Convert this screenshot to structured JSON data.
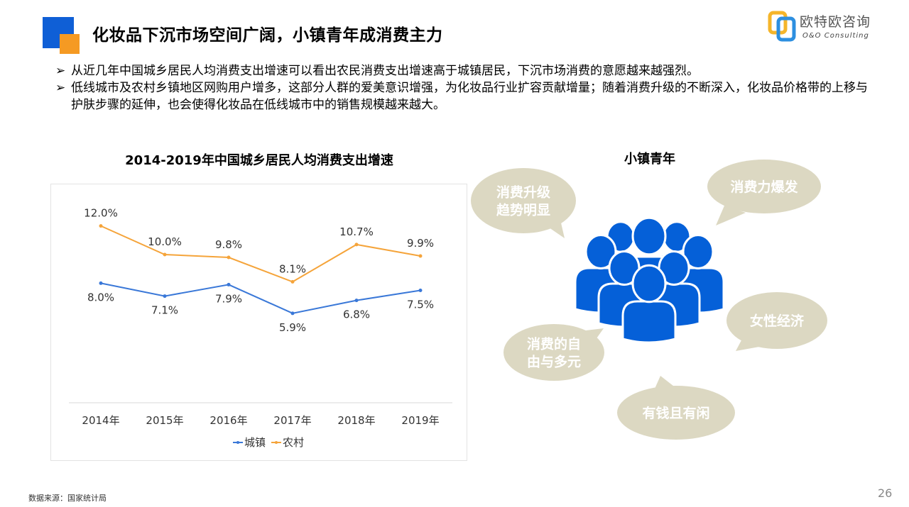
{
  "slide": {
    "title": "化妆品下沉市场空间广阔，小镇青年成消费主力",
    "logo": {
      "cn": "欧特欧咨询",
      "en": "O&O Consulting"
    },
    "bullet_marker": "➢",
    "bullets": [
      "从近几年中国城乡居民人均消费支出增速可以看出农民消费支出增速高于城镇居民，下沉市场消费的意愿越来越强烈。",
      "低线城市及农村乡镇地区网购用户增多，这部分人群的爱美意识增强，为化妆品行业扩容贡献增量；随着消费升级的不断深入，化妆品价格带的上移与护肤步骤的延伸，也会使得化妆品在低线城市中的销售规模越来越大。"
    ],
    "source": "数据来源：国家统计局",
    "page_number": "26"
  },
  "diagram": {
    "title": "小镇青年",
    "icon": "people-group-icon",
    "icon_color": "#0560d8",
    "bubble_color": "#dcd8c2",
    "bubbles": [
      {
        "lines": [
          "消费升级",
          "趋势明显"
        ]
      },
      {
        "lines": [
          "消费力爆发"
        ]
      },
      {
        "lines": [
          "女性经济"
        ]
      },
      {
        "lines": [
          "消费的自",
          "由与多元"
        ]
      },
      {
        "lines": [
          "有钱且有闲"
        ]
      }
    ]
  },
  "chart_data": {
    "type": "line",
    "title": "2014-2019年中国城乡居民人均消费支出增速",
    "categories": [
      "2014年",
      "2015年",
      "2016年",
      "2017年",
      "2018年",
      "2019年"
    ],
    "series": [
      {
        "name": "城镇",
        "values": [
          8.0,
          7.1,
          7.9,
          5.9,
          6.8,
          7.5
        ],
        "labels": [
          "8.0%",
          "7.1%",
          "7.9%",
          "5.9%",
          "6.8%",
          "7.5%"
        ],
        "color": "#3a78d8"
      },
      {
        "name": "农村",
        "values": [
          12.0,
          10.0,
          9.8,
          8.1,
          10.7,
          9.9
        ],
        "labels": [
          "12.0%",
          "10.0%",
          "9.8%",
          "8.1%",
          "10.7%",
          "9.9%"
        ],
        "color": "#f5a43a"
      }
    ],
    "unit": "%",
    "grid": false,
    "legend": "bottom"
  }
}
